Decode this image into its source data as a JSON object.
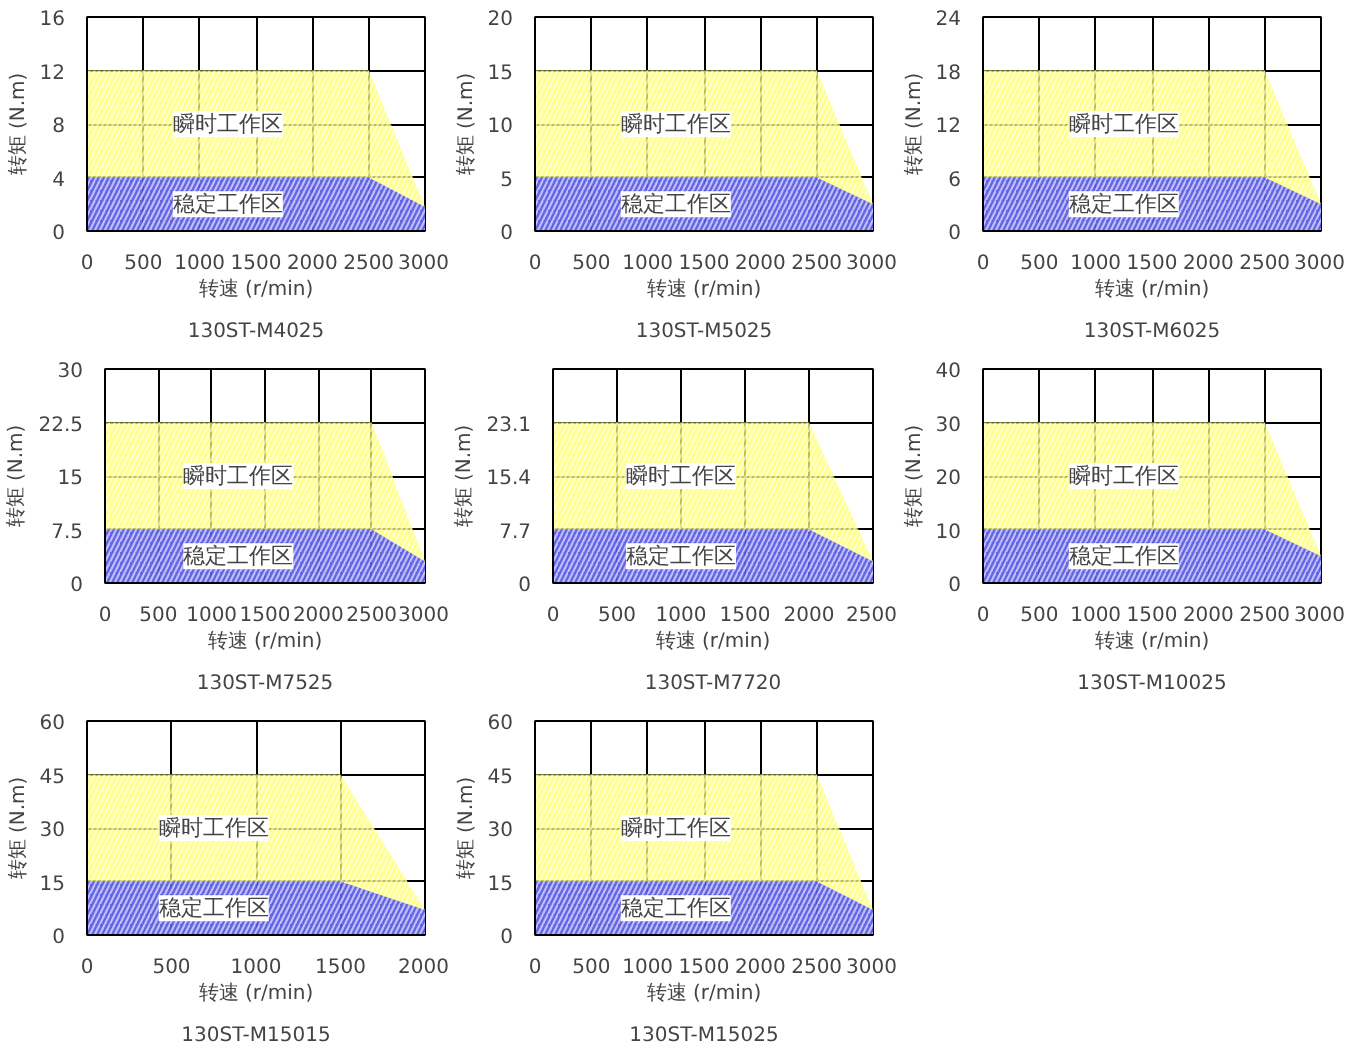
{
  "chart_data": [
    {
      "type": "area",
      "title": "130ST-M4025",
      "xlabel": "转速 (r/min)",
      "ylabel": "转矩 (N.m)",
      "x": [
        0,
        2500,
        3000
      ],
      "xlim": [
        0,
        3000
      ],
      "xticks": [
        0,
        500,
        1000,
        1500,
        2000,
        2500,
        3000
      ],
      "ylim": [
        0,
        16
      ],
      "yticks": [
        0,
        4,
        8,
        12,
        16
      ],
      "grid": true,
      "series": [
        {
          "name": "瞬时工作区",
          "color": "#ffff66",
          "values": [
            12,
            12,
            1.8
          ]
        },
        {
          "name": "稳定工作区",
          "color": "#3333ff",
          "values": [
            4,
            4,
            1.8
          ]
        }
      ]
    },
    {
      "type": "area",
      "title": "130ST-M5025",
      "xlabel": "转速 (r/min)",
      "ylabel": "转矩 (N.m)",
      "x": [
        0,
        2500,
        3000
      ],
      "xlim": [
        0,
        3000
      ],
      "xticks": [
        0,
        500,
        1000,
        1500,
        2000,
        2500,
        3000
      ],
      "ylim": [
        0,
        20
      ],
      "yticks": [
        0,
        5,
        10,
        15,
        20
      ],
      "grid": true,
      "series": [
        {
          "name": "瞬时工作区",
          "color": "#ffff66",
          "values": [
            15,
            15,
            2.5
          ]
        },
        {
          "name": "稳定工作区",
          "color": "#3333ff",
          "values": [
            5,
            5,
            2.5
          ]
        }
      ]
    },
    {
      "type": "area",
      "title": "130ST-M6025",
      "xlabel": "转速 (r/min)",
      "ylabel": "转矩 (N.m)",
      "x": [
        0,
        2500,
        3000
      ],
      "xlim": [
        0,
        3000
      ],
      "xticks": [
        0,
        500,
        1000,
        1500,
        2000,
        2500,
        3000
      ],
      "ylim": [
        0,
        24
      ],
      "yticks": [
        0,
        6,
        12,
        18,
        24
      ],
      "grid": true,
      "series": [
        {
          "name": "瞬时工作区",
          "color": "#ffff66",
          "values": [
            18,
            18,
            3
          ]
        },
        {
          "name": "稳定工作区",
          "color": "#3333ff",
          "values": [
            6,
            6,
            3
          ]
        }
      ]
    },
    {
      "type": "area",
      "title": "130ST-M7525",
      "xlabel": "转速 (r/min)",
      "ylabel": "转矩 (N.m)",
      "x": [
        0,
        2500,
        3000
      ],
      "xlim": [
        0,
        3000
      ],
      "xticks": [
        0,
        500,
        1000,
        1500,
        2000,
        2500,
        3000
      ],
      "ylim": [
        0,
        30
      ],
      "yticks": [
        0,
        7.5,
        15,
        22.5,
        30
      ],
      "grid": true,
      "series": [
        {
          "name": "瞬时工作区",
          "color": "#ffff66",
          "values": [
            22.5,
            22.5,
            3
          ]
        },
        {
          "name": "稳定工作区",
          "color": "#3333ff",
          "values": [
            7.5,
            7.5,
            3
          ]
        }
      ]
    },
    {
      "type": "area",
      "title": "130ST-M7720",
      "xlabel": "转速 (r/min)",
      "ylabel": "转矩 (N.m)",
      "x": [
        0,
        2000,
        2500
      ],
      "xlim": [
        0,
        2500
      ],
      "xticks": [
        0,
        500,
        1000,
        1500,
        2000,
        2500
      ],
      "ylim": [
        0,
        30.8
      ],
      "yticks": [
        0,
        7.7,
        15.4,
        23.1,
        {
          "value": 30.8,
          "label": null
        }
      ],
      "grid": true,
      "series": [
        {
          "name": "瞬时工作区",
          "color": "#ffff66",
          "values": [
            23.1,
            23.1,
            3.1
          ]
        },
        {
          "name": "稳定工作区",
          "color": "#3333ff",
          "values": [
            7.7,
            7.7,
            3.1
          ]
        }
      ]
    },
    {
      "type": "area",
      "title": "130ST-M10025",
      "xlabel": "转速 (r/min)",
      "ylabel": "转矩 (N.m)",
      "x": [
        0,
        2500,
        3000
      ],
      "xlim": [
        0,
        3000
      ],
      "xticks": [
        0,
        500,
        1000,
        1500,
        2000,
        2500,
        3000
      ],
      "ylim": [
        0,
        40
      ],
      "yticks": [
        0,
        10,
        20,
        30,
        40
      ],
      "grid": true,
      "series": [
        {
          "name": "瞬时工作区",
          "color": "#ffff66",
          "values": [
            30,
            30,
            5
          ]
        },
        {
          "name": "稳定工作区",
          "color": "#3333ff",
          "values": [
            10,
            10,
            5
          ]
        }
      ]
    },
    {
      "type": "area",
      "title": "130ST-M15015",
      "xlabel": "转速 (r/min)",
      "ylabel": "转矩 (N.m)",
      "x": [
        0,
        1500,
        2000
      ],
      "xlim": [
        0,
        2000
      ],
      "xticks": [
        0,
        500,
        1000,
        1500,
        2000
      ],
      "ylim": [
        0,
        60
      ],
      "yticks": [
        0,
        15,
        30,
        45,
        60
      ],
      "grid": true,
      "series": [
        {
          "name": "瞬时工作区",
          "color": "#ffff66",
          "values": [
            45,
            45,
            7
          ]
        },
        {
          "name": "稳定工作区",
          "color": "#3333ff",
          "values": [
            15,
            15,
            7
          ]
        }
      ]
    },
    {
      "type": "area",
      "title": "130ST-M15025",
      "xlabel": "转速 (r/min)",
      "ylabel": "转矩 (N.m)",
      "x": [
        0,
        2500,
        3000
      ],
      "xlim": [
        0,
        3000
      ],
      "xticks": [
        0,
        500,
        1000,
        1500,
        2000,
        2500,
        3000
      ],
      "ylim": [
        0,
        60
      ],
      "yticks": [
        0,
        15,
        30,
        45,
        60
      ],
      "grid": true,
      "series": [
        {
          "name": "瞬时工作区",
          "color": "#ffff66",
          "values": [
            45,
            45,
            7
          ]
        },
        {
          "name": "稳定工作区",
          "color": "#3333ff",
          "values": [
            15,
            15,
            7
          ]
        }
      ]
    }
  ]
}
